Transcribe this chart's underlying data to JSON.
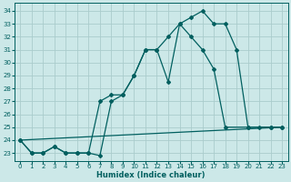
{
  "xlabel": "Humidex (Indice chaleur)",
  "bg_color": "#cce8e8",
  "grid_color": "#aacccc",
  "line_color": "#005f5f",
  "xlim": [
    -0.5,
    23.5
  ],
  "ylim": [
    22.4,
    34.6
  ],
  "xticks": [
    0,
    1,
    2,
    3,
    4,
    5,
    6,
    7,
    8,
    9,
    10,
    11,
    12,
    13,
    14,
    15,
    16,
    17,
    18,
    19,
    20,
    21,
    22,
    23
  ],
  "yticks": [
    23,
    24,
    25,
    26,
    27,
    28,
    29,
    30,
    31,
    32,
    33,
    34
  ],
  "line1_x": [
    0,
    1,
    2,
    3,
    4,
    5,
    6,
    7,
    8,
    9,
    10,
    11,
    12,
    13,
    14,
    15,
    16,
    17,
    18,
    19,
    20,
    22,
    23
  ],
  "line1_y": [
    24,
    23,
    23,
    23.5,
    23,
    23,
    23,
    22.8,
    27,
    27.5,
    29,
    31,
    31,
    28.5,
    33,
    33.5,
    34,
    33,
    33,
    31,
    25,
    25,
    25
  ],
  "line2_x": [
    0,
    1,
    2,
    3,
    4,
    5,
    6,
    7,
    8,
    9,
    10,
    11,
    12,
    13,
    14,
    15,
    16,
    17,
    18,
    20,
    21,
    22,
    23
  ],
  "line2_y": [
    24,
    23,
    23,
    23.5,
    23,
    23,
    23,
    27,
    27.5,
    27.5,
    29,
    31,
    31,
    32,
    33,
    32,
    31,
    29.5,
    25,
    25,
    25,
    25,
    25
  ],
  "line3_x": [
    0,
    23
  ],
  "line3_y": [
    24,
    25
  ]
}
